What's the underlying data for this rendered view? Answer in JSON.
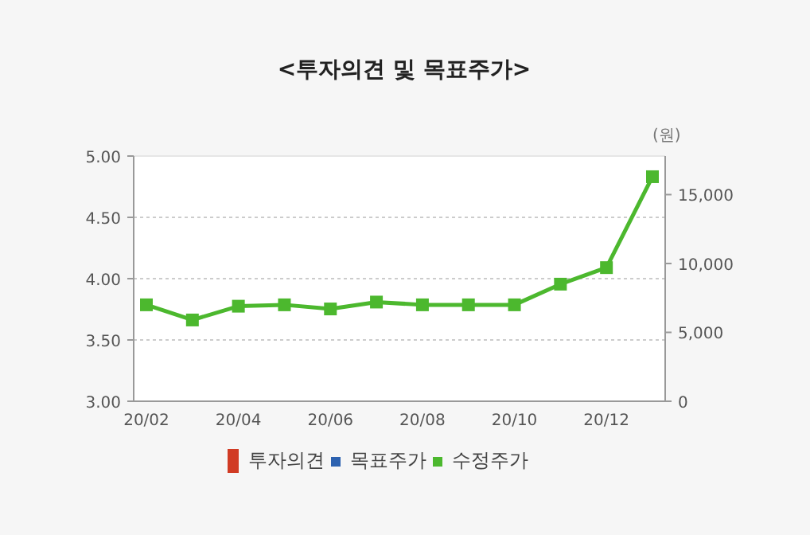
{
  "chart_data": {
    "type": "line",
    "title": "<투자의견 및 목표주가>",
    "categories": [
      "20/02",
      null,
      "20/04",
      null,
      "20/06",
      null,
      "20/08",
      null,
      "20/10",
      null,
      "20/12",
      null
    ],
    "series": [
      {
        "name": "투자의견",
        "type": "bar",
        "color": "#d13b24",
        "values": [
          null,
          null,
          null,
          null,
          null,
          null,
          null,
          null,
          null,
          null,
          null,
          null
        ]
      },
      {
        "name": "목표주가",
        "axis": "y2",
        "color": "#2d62b0",
        "values": [
          null,
          null,
          null,
          null,
          null,
          null,
          null,
          null,
          null,
          null,
          null,
          null
        ]
      },
      {
        "name": "수정주가",
        "axis": "y2",
        "color": "#4cb82e",
        "values": [
          7000,
          5900,
          6900,
          7000,
          6700,
          7200,
          7000,
          7000,
          7000,
          8500,
          9700,
          16300
        ]
      }
    ],
    "ylim": [
      3,
      5
    ],
    "yticks": [
      {
        "value": 3,
        "label": "3.00"
      },
      {
        "value": 3.5,
        "label": "3.50"
      },
      {
        "value": 4,
        "label": "4.00"
      },
      {
        "value": 4.5,
        "label": "4.50"
      },
      {
        "value": 5,
        "label": "5.00"
      }
    ],
    "y2lim": [
      0,
      17800
    ],
    "y2ticks": [
      0,
      {
        "value": 5000,
        "label": "5,000"
      },
      {
        "value": 10000,
        "label": "10,000"
      },
      {
        "value": 15000,
        "label": "15,000"
      }
    ],
    "y2label": "(원)",
    "grid": "y",
    "legend": "bottom",
    "marker": "square"
  }
}
